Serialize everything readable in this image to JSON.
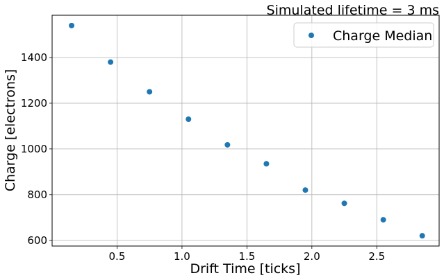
{
  "chart_data": {
    "type": "scatter",
    "title": "Simulated lifetime = 3 ms",
    "xlabel": "Drift Time [ticks]",
    "ylabel": "Charge [electrons]",
    "xlim": [
      0.0,
      2.98
    ],
    "ylim": [
      575,
      1585
    ],
    "xticks": [
      0.5,
      1.0,
      1.5,
      2.0,
      2.5
    ],
    "xtick_labels": [
      "0.5",
      "1.0",
      "1.5",
      "2.0",
      "2.5"
    ],
    "yticks": [
      600,
      800,
      1000,
      1200,
      1400
    ],
    "ytick_labels": [
      "600",
      "800",
      "1000",
      "1200",
      "1400"
    ],
    "grid": true,
    "legend_position": "top-right",
    "series": [
      {
        "name": "Charge Median",
        "color": "#1f77b4",
        "x": [
          0.15,
          0.45,
          0.75,
          1.05,
          1.35,
          1.65,
          1.95,
          2.25,
          2.55,
          2.85
        ],
        "y": [
          1540,
          1380,
          1250,
          1130,
          1018,
          935,
          820,
          762,
          690,
          620
        ]
      }
    ]
  }
}
